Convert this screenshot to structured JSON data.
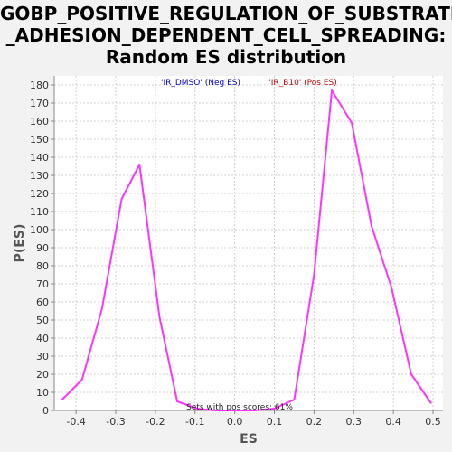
{
  "chart_data": {
    "type": "line",
    "title_lines": [
      "GOBP_POSITIVE_REGULATION_OF_SUBSTRATE",
      "_ADHESION_DEPENDENT_CELL_SPREADING:",
      "Random ES distribution"
    ],
    "xlabel": "ES",
    "ylabel": "P(ES)",
    "xlim": [
      -0.455,
      0.525
    ],
    "ylim": [
      0,
      185
    ],
    "xticks": [
      -0.4,
      -0.3,
      -0.2,
      -0.1,
      0.0,
      0.1,
      0.2,
      0.3,
      0.4,
      0.5
    ],
    "xtick_labels": [
      "-0.4",
      "-0.3",
      "-0.2",
      "-0.1",
      "0.0",
      "0.1",
      "0.2",
      "0.3",
      "0.4",
      "0.5"
    ],
    "yticks": [
      0,
      10,
      20,
      30,
      40,
      50,
      60,
      70,
      80,
      90,
      100,
      110,
      120,
      130,
      140,
      150,
      160,
      170,
      180
    ],
    "grid": true,
    "series": [
      {
        "color": "#ff33ff",
        "x": [
          -0.435,
          -0.385,
          -0.335,
          -0.285,
          -0.24,
          -0.19,
          -0.145,
          -0.095,
          -0.05,
          0.0,
          0.05,
          0.1,
          0.15,
          0.2,
          0.245,
          0.295,
          0.345,
          0.395,
          0.445,
          0.495
        ],
        "y": [
          6,
          17,
          56,
          117,
          136,
          52,
          5,
          1,
          0,
          0,
          0,
          1,
          6,
          75,
          177,
          159,
          102,
          68,
          20,
          4
        ]
      }
    ],
    "legend": [
      {
        "label": "'IR_DMSO' (Neg ES)",
        "color": "#0000cc"
      },
      {
        "label": "'IR_B10' (Pos ES)",
        "color": "#cc0000"
      }
    ],
    "annotation": "Sets with pos scores: 61%"
  }
}
